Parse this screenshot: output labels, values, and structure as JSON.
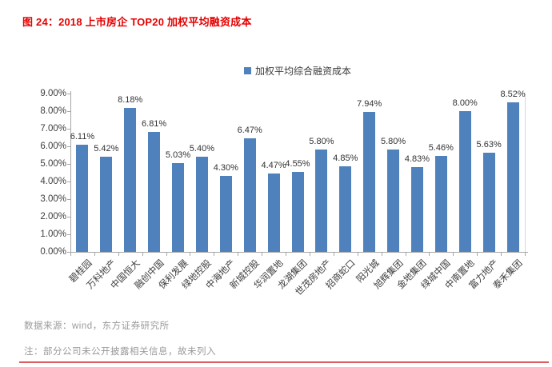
{
  "page": {
    "title": "图 24：2018 上市房企 TOP20 加权平均融资成本",
    "source_note": "数据来源：wind，东方证券研究所",
    "footnote": "注：部分公司未公开披露相关信息，故未列入"
  },
  "colors": {
    "bar": "#4f81bd",
    "title_red": "#e60000",
    "divider_red": "#dc5f5f",
    "axis_gray": "#a6a6a6",
    "plot_border_gray": "#d9d9d9",
    "label_dark": "#404040",
    "footer_gray": "#9a9a9a"
  },
  "chart_data": {
    "type": "bar",
    "title": "2018 上市房企 TOP20 加权平均融资成本",
    "legend": [
      "加权平均综合融资成本"
    ],
    "legend_position": "top",
    "grid": false,
    "categories": [
      "碧桂园",
      "万科地产",
      "中国恒大",
      "融创中国",
      "保利发展",
      "绿地控股",
      "中海地产",
      "新城控股",
      "华润置地",
      "龙湖集团",
      "世茂房地产",
      "招商蛇口",
      "阳光城",
      "旭辉集团",
      "金地集团",
      "绿城中国",
      "中南置地",
      "富力地产",
      "泰禾集团"
    ],
    "values": [
      6.11,
      5.42,
      8.18,
      6.81,
      5.03,
      5.4,
      4.3,
      6.47,
      4.47,
      4.55,
      5.8,
      4.85,
      7.94,
      5.8,
      4.83,
      5.46,
      8.0,
      5.63,
      8.52
    ],
    "value_labels": [
      "6.11%",
      "5.42%",
      "8.18%",
      "6.81%",
      "5.03%",
      "5.40%",
      "4.30%",
      "6.47%",
      "4.47%",
      "4.55%",
      "5.80%",
      "4.85%",
      "7.94%",
      "5.80%",
      "4.83%",
      "5.46%",
      "8.00%",
      "5.63%",
      "8.52%"
    ],
    "xlabel": "",
    "ylabel": "",
    "ylim": [
      0,
      9
    ],
    "ytick_step": 1,
    "ytick_labels": [
      "0.00%",
      "1.00%",
      "2.00%",
      "3.00%",
      "4.00%",
      "5.00%",
      "6.00%",
      "7.00%",
      "8.00%",
      "9.00%"
    ]
  }
}
